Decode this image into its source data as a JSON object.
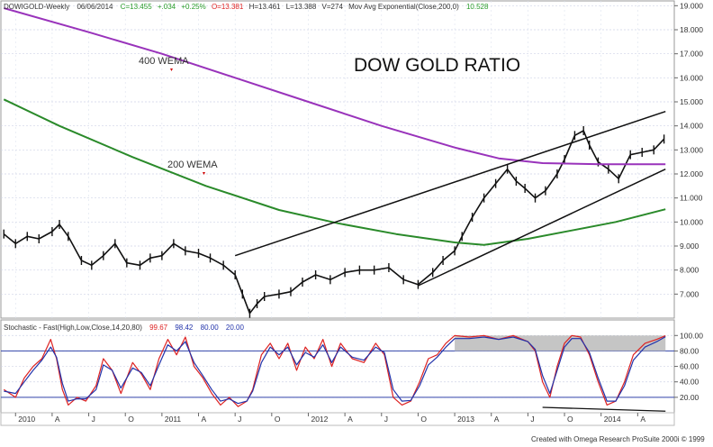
{
  "header": {
    "symbol": "DOWIGOLD-Weekly",
    "date": "06/06/2014",
    "close": "C=13.455",
    "change": "+.034",
    "change_pct": "+0.25%",
    "open": "O=13.381",
    "high": "H=13.461",
    "low": "L=13.388",
    "volume": "V=274",
    "indicator": "Mov Avg Exponential(Close,200,0)",
    "indicator_value": "10.528",
    "colors": {
      "up": "#2a9d2a",
      "down": "#d22",
      "text": "#333",
      "accent": "#1a1aa0"
    }
  },
  "annotations": {
    "title": "DOW GOLD RATIO",
    "wema400": "400 WEMA",
    "wema200": "200 WEMA",
    "marker_color": "#d00000"
  },
  "stoch_header": {
    "label": "Stochastic - Fast(High,Low,Close,14,20,80)",
    "v1": "99.67",
    "v2": "98.42",
    "v3": "80.00",
    "v4": "20.00",
    "colors": {
      "v1": "#d22",
      "v2": "#2233aa",
      "v3": "#2233aa",
      "v4": "#2233aa"
    }
  },
  "footer": "Created with Omega Research ProSuite 2000i © 1999",
  "chart_data": [
    {
      "type": "line",
      "name": "price",
      "yticks": [
        "19.000",
        "18.000",
        "17.000",
        "16.000",
        "15.000",
        "14.000",
        "13.000",
        "12.000",
        "11.000",
        "10.000",
        "9.000",
        "8.000",
        "7.000"
      ],
      "ylim": [
        6.0,
        19.2
      ],
      "x_ticks": [
        "2010",
        "A",
        "J",
        "O",
        "2011",
        "A",
        "J",
        "O",
        "2012",
        "A",
        "J",
        "O",
        "2013",
        "A",
        "J",
        "O",
        "2014",
        "A"
      ],
      "x_tick_dates": [
        2010.0,
        2010.25,
        2010.5,
        2010.75,
        2011.0,
        2011.25,
        2011.5,
        2011.75,
        2012.0,
        2012.25,
        2012.5,
        2012.75,
        2013.0,
        2013.25,
        2013.5,
        2013.75,
        2014.0,
        2014.25
      ],
      "xlim": [
        2009.9,
        2014.5
      ],
      "series": [
        {
          "name": "DOWIGOLD",
          "color": "#111111",
          "points": [
            [
              2009.92,
              9.5
            ],
            [
              2010.0,
              9.1
            ],
            [
              2010.08,
              9.4
            ],
            [
              2010.16,
              9.3
            ],
            [
              2010.25,
              9.6
            ],
            [
              2010.3,
              9.9
            ],
            [
              2010.36,
              9.4
            ],
            [
              2010.45,
              8.4
            ],
            [
              2010.52,
              8.2
            ],
            [
              2010.6,
              8.6
            ],
            [
              2010.68,
              9.1
            ],
            [
              2010.76,
              8.3
            ],
            [
              2010.85,
              8.2
            ],
            [
              2010.92,
              8.5
            ],
            [
              2011.0,
              8.6
            ],
            [
              2011.08,
              9.1
            ],
            [
              2011.16,
              8.8
            ],
            [
              2011.25,
              8.7
            ],
            [
              2011.33,
              8.5
            ],
            [
              2011.42,
              8.2
            ],
            [
              2011.5,
              7.8
            ],
            [
              2011.55,
              7.0
            ],
            [
              2011.6,
              6.2
            ],
            [
              2011.65,
              6.6
            ],
            [
              2011.7,
              6.9
            ],
            [
              2011.8,
              7.0
            ],
            [
              2011.88,
              7.1
            ],
            [
              2011.96,
              7.5
            ],
            [
              2012.05,
              7.8
            ],
            [
              2012.15,
              7.6
            ],
            [
              2012.25,
              7.9
            ],
            [
              2012.35,
              8.0
            ],
            [
              2012.45,
              8.0
            ],
            [
              2012.55,
              8.1
            ],
            [
              2012.65,
              7.6
            ],
            [
              2012.75,
              7.4
            ],
            [
              2012.85,
              7.9
            ],
            [
              2012.92,
              8.4
            ],
            [
              2013.0,
              8.8
            ],
            [
              2013.05,
              9.4
            ],
            [
              2013.12,
              10.2
            ],
            [
              2013.2,
              11.0
            ],
            [
              2013.28,
              11.6
            ],
            [
              2013.36,
              12.2
            ],
            [
              2013.42,
              11.7
            ],
            [
              2013.48,
              11.4
            ],
            [
              2013.55,
              11.0
            ],
            [
              2013.62,
              11.3
            ],
            [
              2013.7,
              12.0
            ],
            [
              2013.75,
              12.6
            ],
            [
              2013.82,
              13.6
            ],
            [
              2013.88,
              13.8
            ],
            [
              2013.92,
              13.2
            ],
            [
              2013.98,
              12.5
            ],
            [
              2014.05,
              12.2
            ],
            [
              2014.12,
              11.8
            ],
            [
              2014.2,
              12.8
            ],
            [
              2014.28,
              12.9
            ],
            [
              2014.36,
              13.0
            ],
            [
              2014.43,
              13.45
            ]
          ]
        },
        {
          "name": "400 WEMA",
          "color": "#9933bb",
          "points": [
            [
              2009.92,
              18.9
            ],
            [
              2010.5,
              17.9
            ],
            [
              2011.0,
              17.0
            ],
            [
              2011.5,
              16.0
            ],
            [
              2012.0,
              15.0
            ],
            [
              2012.5,
              14.0
            ],
            [
              2013.0,
              13.1
            ],
            [
              2013.3,
              12.65
            ],
            [
              2013.6,
              12.45
            ],
            [
              2014.0,
              12.4
            ],
            [
              2014.44,
              12.4
            ]
          ]
        },
        {
          "name": "200 WEMA",
          "color": "#2a8a2a",
          "points": [
            [
              2009.92,
              15.1
            ],
            [
              2010.3,
              14.0
            ],
            [
              2010.8,
              12.7
            ],
            [
              2011.3,
              11.5
            ],
            [
              2011.8,
              10.5
            ],
            [
              2012.2,
              9.95
            ],
            [
              2012.6,
              9.5
            ],
            [
              2013.0,
              9.15
            ],
            [
              2013.2,
              9.05
            ],
            [
              2013.5,
              9.3
            ],
            [
              2013.8,
              9.65
            ],
            [
              2014.1,
              10.0
            ],
            [
              2014.44,
              10.53
            ]
          ]
        }
      ],
      "trendlines": [
        {
          "from": [
            2011.5,
            8.6
          ],
          "to": [
            2014.44,
            14.6
          ],
          "color": "#111111"
        },
        {
          "from": [
            2012.75,
            7.35
          ],
          "to": [
            2014.44,
            12.2
          ],
          "color": "#111111"
        }
      ]
    },
    {
      "type": "line",
      "name": "stochastic",
      "yticks": [
        "100.00",
        "80.00",
        "60.00",
        "40.00",
        "20.00"
      ],
      "ylim": [
        0,
        105
      ],
      "overbought": 80,
      "oversold": 20,
      "shaded_region": {
        "x": [
          2013.0,
          2014.44
        ],
        "y": [
          80,
          100
        ],
        "color": "#bbbbbb"
      },
      "series": [
        {
          "name": "%K",
          "color": "#dd2222",
          "points": [
            [
              2009.92,
              30
            ],
            [
              2010.0,
              20
            ],
            [
              2010.06,
              45
            ],
            [
              2010.12,
              60
            ],
            [
              2010.18,
              70
            ],
            [
              2010.24,
              95
            ],
            [
              2010.28,
              70
            ],
            [
              2010.32,
              30
            ],
            [
              2010.36,
              10
            ],
            [
              2010.42,
              20
            ],
            [
              2010.48,
              15
            ],
            [
              2010.55,
              35
            ],
            [
              2010.6,
              70
            ],
            [
              2010.66,
              55
            ],
            [
              2010.72,
              25
            ],
            [
              2010.8,
              65
            ],
            [
              2010.86,
              50
            ],
            [
              2010.92,
              30
            ],
            [
              2010.98,
              70
            ],
            [
              2011.04,
              95
            ],
            [
              2011.1,
              75
            ],
            [
              2011.16,
              98
            ],
            [
              2011.22,
              60
            ],
            [
              2011.28,
              45
            ],
            [
              2011.34,
              25
            ],
            [
              2011.4,
              10
            ],
            [
              2011.46,
              20
            ],
            [
              2011.52,
              8
            ],
            [
              2011.58,
              15
            ],
            [
              2011.62,
              30
            ],
            [
              2011.68,
              75
            ],
            [
              2011.74,
              90
            ],
            [
              2011.8,
              70
            ],
            [
              2011.86,
              90
            ],
            [
              2011.92,
              55
            ],
            [
              2011.98,
              85
            ],
            [
              2012.04,
              70
            ],
            [
              2012.1,
              95
            ],
            [
              2012.16,
              60
            ],
            [
              2012.22,
              90
            ],
            [
              2012.3,
              70
            ],
            [
              2012.38,
              65
            ],
            [
              2012.46,
              90
            ],
            [
              2012.52,
              75
            ],
            [
              2012.58,
              20
            ],
            [
              2012.64,
              10
            ],
            [
              2012.7,
              15
            ],
            [
              2012.76,
              40
            ],
            [
              2012.82,
              70
            ],
            [
              2012.88,
              75
            ],
            [
              2012.94,
              90
            ],
            [
              2013.0,
              100
            ],
            [
              2013.1,
              98
            ],
            [
              2013.2,
              100
            ],
            [
              2013.3,
              95
            ],
            [
              2013.4,
              100
            ],
            [
              2013.5,
              92
            ],
            [
              2013.55,
              80
            ],
            [
              2013.6,
              40
            ],
            [
              2013.65,
              20
            ],
            [
              2013.7,
              60
            ],
            [
              2013.75,
              90
            ],
            [
              2013.8,
              100
            ],
            [
              2013.86,
              98
            ],
            [
              2013.92,
              75
            ],
            [
              2013.98,
              40
            ],
            [
              2014.04,
              10
            ],
            [
              2014.1,
              15
            ],
            [
              2014.16,
              40
            ],
            [
              2014.22,
              75
            ],
            [
              2014.3,
              90
            ],
            [
              2014.38,
              95
            ],
            [
              2014.44,
              99.67
            ]
          ]
        },
        {
          "name": "%D",
          "color": "#2233aa",
          "points": [
            [
              2009.92,
              28
            ],
            [
              2010.0,
              25
            ],
            [
              2010.06,
              40
            ],
            [
              2010.12,
              55
            ],
            [
              2010.18,
              68
            ],
            [
              2010.24,
              85
            ],
            [
              2010.28,
              72
            ],
            [
              2010.32,
              38
            ],
            [
              2010.36,
              15
            ],
            [
              2010.42,
              18
            ],
            [
              2010.48,
              18
            ],
            [
              2010.55,
              30
            ],
            [
              2010.6,
              62
            ],
            [
              2010.66,
              55
            ],
            [
              2010.72,
              32
            ],
            [
              2010.8,
              58
            ],
            [
              2010.86,
              52
            ],
            [
              2010.92,
              35
            ],
            [
              2010.98,
              62
            ],
            [
              2011.04,
              88
            ],
            [
              2011.1,
              80
            ],
            [
              2011.16,
              92
            ],
            [
              2011.22,
              65
            ],
            [
              2011.28,
              48
            ],
            [
              2011.34,
              30
            ],
            [
              2011.4,
              15
            ],
            [
              2011.46,
              18
            ],
            [
              2011.52,
              12
            ],
            [
              2011.58,
              15
            ],
            [
              2011.62,
              28
            ],
            [
              2011.68,
              65
            ],
            [
              2011.74,
              85
            ],
            [
              2011.8,
              75
            ],
            [
              2011.86,
              85
            ],
            [
              2011.92,
              62
            ],
            [
              2011.98,
              78
            ],
            [
              2012.04,
              72
            ],
            [
              2012.1,
              88
            ],
            [
              2012.16,
              65
            ],
            [
              2012.22,
              85
            ],
            [
              2012.3,
              72
            ],
            [
              2012.38,
              68
            ],
            [
              2012.46,
              85
            ],
            [
              2012.52,
              78
            ],
            [
              2012.58,
              30
            ],
            [
              2012.64,
              15
            ],
            [
              2012.7,
              16
            ],
            [
              2012.76,
              35
            ],
            [
              2012.82,
              62
            ],
            [
              2012.88,
              72
            ],
            [
              2012.94,
              85
            ],
            [
              2013.0,
              96
            ],
            [
              2013.1,
              96
            ],
            [
              2013.2,
              98
            ],
            [
              2013.3,
              95
            ],
            [
              2013.4,
              98
            ],
            [
              2013.5,
              92
            ],
            [
              2013.55,
              82
            ],
            [
              2013.6,
              48
            ],
            [
              2013.65,
              25
            ],
            [
              2013.7,
              55
            ],
            [
              2013.75,
              85
            ],
            [
              2013.8,
              96
            ],
            [
              2013.86,
              96
            ],
            [
              2013.92,
              78
            ],
            [
              2013.98,
              45
            ],
            [
              2014.04,
              15
            ],
            [
              2014.1,
              15
            ],
            [
              2014.16,
              35
            ],
            [
              2014.22,
              68
            ],
            [
              2014.3,
              85
            ],
            [
              2014.38,
              92
            ],
            [
              2014.44,
              98.42
            ]
          ]
        }
      ],
      "trendlines": [
        {
          "from": [
            2013.6,
            7
          ],
          "to": [
            2014.44,
            2
          ],
          "color": "#111111"
        }
      ]
    }
  ]
}
